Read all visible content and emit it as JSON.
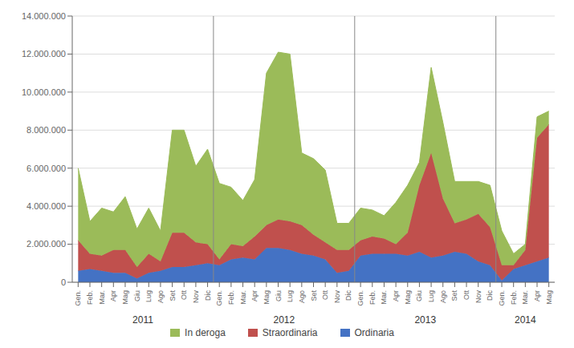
{
  "chart_data": {
    "type": "area",
    "stacked": true,
    "grid": true,
    "legend": "bottom",
    "categories": [
      "Gen.",
      "Feb.",
      "Mar.",
      "Apr",
      "Mag",
      "Giu",
      "Lug",
      "Ago",
      "Set",
      "Ott",
      "Nov",
      "Dic",
      "Gen.",
      "Feb.",
      "Mar.",
      "Apr",
      "Mag",
      "Giu",
      "Lug",
      "Ago",
      "Set",
      "Ott",
      "Nov",
      "Dic",
      "Gen.",
      "Feb.",
      "Mar.",
      "Apr",
      "Mag",
      "Giu",
      "Lug",
      "Ago",
      "Set",
      "Ott",
      "Nov",
      "Dic",
      "Gen.",
      "Feb.",
      "Mar.",
      "Apr",
      "Mag"
    ],
    "series": [
      {
        "name": "Ordinaria",
        "color": "#4472C4",
        "values": [
          600000,
          700000,
          600000,
          500000,
          500000,
          200000,
          500000,
          600000,
          800000,
          800000,
          900000,
          1000000,
          900000,
          1200000,
          1300000,
          1200000,
          1800000,
          1800000,
          1700000,
          1500000,
          1400000,
          1200000,
          500000,
          600000,
          1400000,
          1500000,
          1500000,
          1500000,
          1400000,
          1600000,
          1300000,
          1400000,
          1600000,
          1500000,
          1100000,
          900000,
          100000,
          700000,
          900000,
          1100000,
          1300000
        ]
      },
      {
        "name": "Straordinaria",
        "color": "#C0504D",
        "values": [
          1600000,
          800000,
          800000,
          1200000,
          1200000,
          600000,
          1000000,
          500000,
          1800000,
          1800000,
          1200000,
          1000000,
          300000,
          800000,
          600000,
          1200000,
          1200000,
          1500000,
          1500000,
          1500000,
          1100000,
          900000,
          1200000,
          1100000,
          800000,
          900000,
          800000,
          500000,
          1200000,
          3500000,
          5500000,
          3000000,
          1500000,
          1800000,
          2500000,
          2000000,
          800000,
          200000,
          800000,
          6500000,
          7000000
        ]
      },
      {
        "name": "In deroga",
        "color": "#9BBB59",
        "values": [
          3800000,
          1700000,
          2500000,
          2000000,
          2800000,
          2000000,
          2400000,
          1600000,
          5400000,
          5400000,
          4000000,
          5000000,
          4000000,
          3000000,
          2400000,
          3000000,
          8000000,
          8800000,
          8800000,
          3800000,
          4000000,
          3800000,
          1400000,
          1400000,
          1700000,
          1400000,
          1200000,
          2200000,
          2500000,
          1200000,
          4500000,
          4000000,
          2200000,
          2000000,
          1700000,
          2200000,
          1800000,
          600000,
          300000,
          1100000,
          700000
        ]
      }
    ],
    "ylim": [
      0,
      14000000
    ],
    "yticks": [
      0,
      {
        "value": 2000000,
        "label": "2.000.000"
      },
      {
        "value": 4000000,
        "label": "4.000.000"
      },
      {
        "value": 6000000,
        "label": "6.000.000"
      },
      {
        "value": 8000000,
        "label": "8.000.000"
      },
      {
        "value": 10000000,
        "label": "10.000.000"
      },
      {
        "value": 12000000,
        "label": "12.000.000"
      },
      {
        "value": 14000000,
        "label": "14.000.000"
      }
    ],
    "annotations": [
      {
        "text": "2011",
        "first": 0,
        "last": 11
      },
      {
        "text": "2012",
        "first": 12,
        "last": 23
      },
      {
        "text": "2013",
        "first": 24,
        "last": 35
      },
      {
        "text": "2014",
        "first": 36,
        "last": 40
      }
    ]
  }
}
